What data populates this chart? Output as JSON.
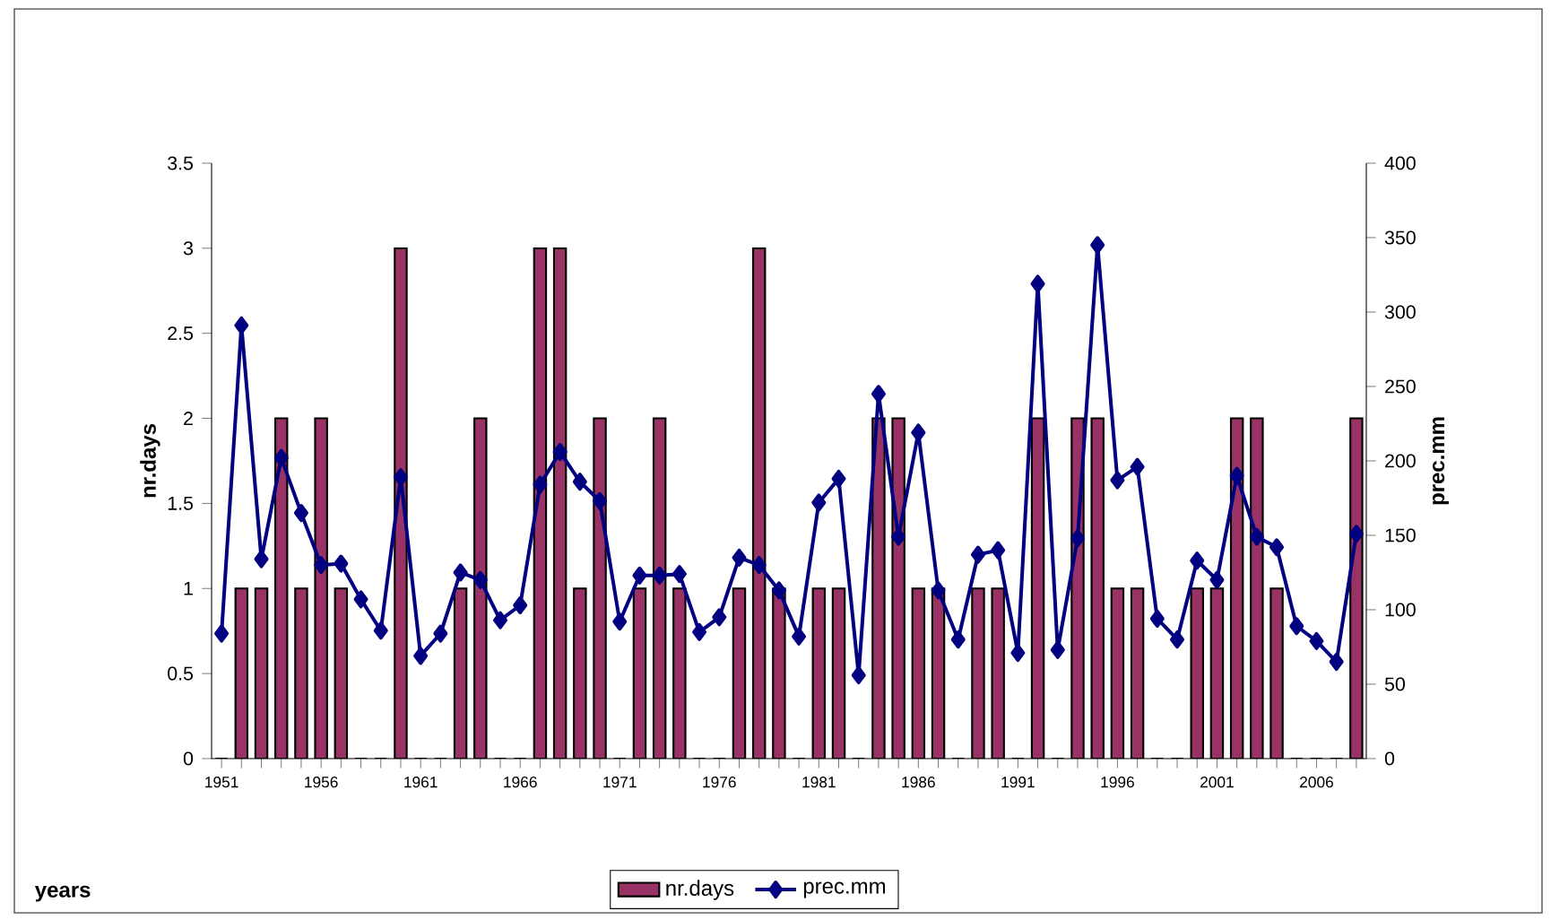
{
  "chart_data": {
    "type": "bar",
    "categories": [
      "1951",
      null,
      null,
      null,
      null,
      "1956",
      null,
      null,
      null,
      null,
      "1961",
      null,
      null,
      null,
      null,
      "1966",
      null,
      null,
      null,
      null,
      "1971",
      null,
      null,
      null,
      null,
      "1976",
      null,
      null,
      null,
      null,
      "1981",
      null,
      null,
      null,
      null,
      "1986",
      null,
      null,
      null,
      null,
      "1991",
      null,
      null,
      null,
      null,
      "1996",
      null,
      null,
      null,
      null,
      "2001",
      null,
      null,
      null,
      null,
      "2006",
      null,
      null
    ],
    "series": [
      {
        "name": "nr.days",
        "color": "#993366",
        "values": [
          0,
          1,
          1,
          2,
          1,
          2,
          1,
          0,
          0,
          3,
          0,
          0,
          1,
          2,
          0,
          0,
          3,
          3,
          1,
          2,
          0,
          1,
          2,
          1,
          0,
          0,
          1,
          3,
          1,
          0,
          1,
          1,
          0,
          2,
          2,
          1,
          1,
          0,
          1,
          1,
          0,
          2,
          0,
          2,
          2,
          1,
          1,
          0,
          0,
          1,
          1,
          2,
          2,
          1,
          0,
          0,
          0,
          2
        ]
      },
      {
        "name": "prec.mm",
        "type": "line",
        "axis": "y2",
        "color": "#000080",
        "values": [
          84,
          291,
          134,
          202,
          165,
          130,
          131,
          107,
          86,
          189,
          69,
          84,
          125,
          120,
          93,
          103,
          184,
          206,
          186,
          173,
          92,
          123,
          123,
          124,
          85,
          95,
          135,
          130,
          113,
          82,
          172,
          188,
          56,
          245,
          149,
          219,
          113,
          80,
          137,
          140,
          71,
          319,
          73,
          148,
          345,
          187,
          196,
          94,
          80,
          133,
          120,
          190,
          149,
          142,
          89,
          79,
          65,
          151
        ]
      }
    ],
    "annotations": [
      "years"
    ],
    "ylabel": "nr.days",
    "y2label": "prec.mm",
    "ylim": [
      0,
      3.5
    ],
    "yticks": [
      0,
      0.5,
      1,
      1.5,
      2,
      2.5,
      3,
      3.5
    ],
    "y2lim": [
      0,
      400
    ],
    "y2ticks": [
      0,
      50,
      100,
      150,
      200,
      250,
      300,
      350,
      400
    ],
    "marker": "diamond",
    "legend": "bottom",
    "grid": false
  }
}
